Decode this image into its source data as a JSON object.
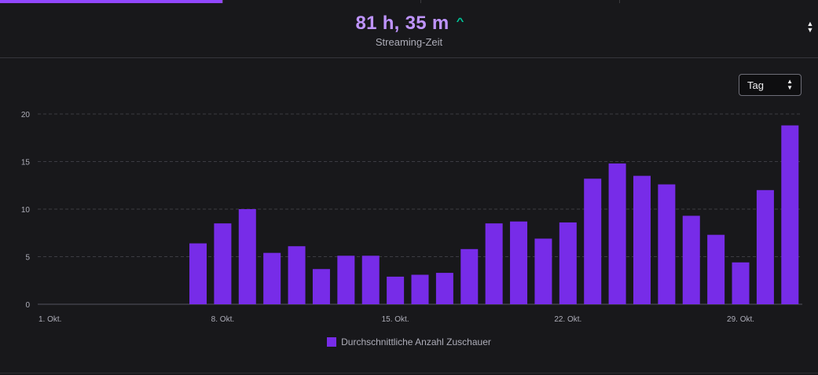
{
  "header": {
    "metric_value": "81 h, 35 m",
    "metric_label": "Streaming-Zeit",
    "trend_icon": "chevron-up-icon",
    "sort_icon": "sort-updown-icon"
  },
  "controls": {
    "granularity_select": "Tag",
    "select_icon": "chevron-updown-icon"
  },
  "colors": {
    "accent": "#9147ff",
    "bar": "#772ce8",
    "metric": "#bf94ff",
    "trend_up": "#00c79a"
  },
  "chart_data": {
    "type": "bar",
    "categories": [
      "1. Okt.",
      "2. Okt.",
      "3. Okt.",
      "4. Okt.",
      "5. Okt.",
      "6. Okt.",
      "7. Okt.",
      "8. Okt.",
      "9. Okt.",
      "10. Okt.",
      "11. Okt.",
      "12. Okt.",
      "13. Okt.",
      "14. Okt.",
      "15. Okt.",
      "16. Okt.",
      "17. Okt.",
      "18. Okt.",
      "19. Okt.",
      "20. Okt.",
      "21. Okt.",
      "22. Okt.",
      "23. Okt.",
      "24. Okt.",
      "25. Okt.",
      "26. Okt.",
      "27. Okt.",
      "28. Okt.",
      "29. Okt.",
      "30. Okt.",
      "31. Okt."
    ],
    "series": [
      {
        "name": "Durchschnittliche Anzahl Zuschauer",
        "values": [
          0,
          0,
          0,
          0,
          0,
          0,
          6.4,
          8.5,
          10,
          5.4,
          6.1,
          3.7,
          5.1,
          5.1,
          2.9,
          3.1,
          3.3,
          5.8,
          8.5,
          8.7,
          6.9,
          8.6,
          13.2,
          14.8,
          13.5,
          12.6,
          9.3,
          7.3,
          4.4,
          12,
          18.8
        ]
      }
    ],
    "x_tick_labels": [
      "1. Okt.",
      "8. Okt.",
      "15. Okt.",
      "22. Okt.",
      "29. Okt."
    ],
    "y_ticks": [
      0,
      5,
      10,
      15,
      20
    ],
    "ylim": [
      0,
      20
    ],
    "grid": true,
    "legend_position": "bottom-center",
    "title": "",
    "xlabel": "",
    "ylabel": ""
  }
}
